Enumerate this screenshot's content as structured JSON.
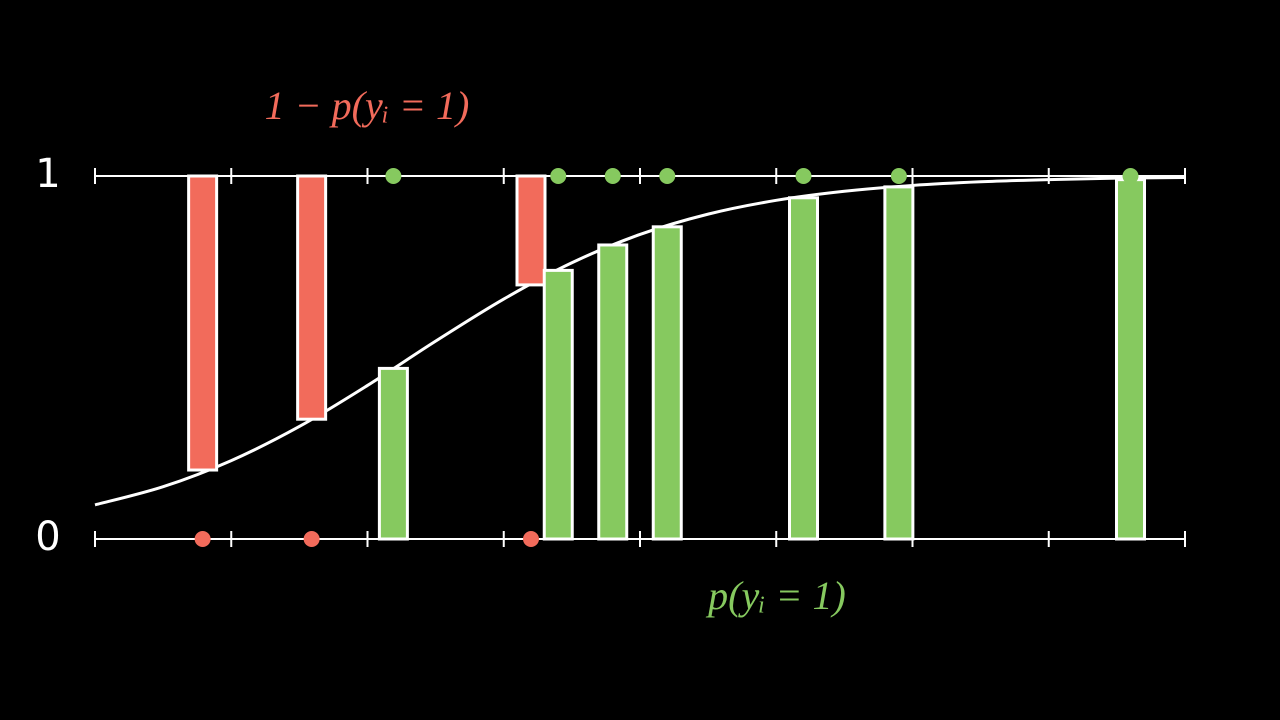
{
  "chart_data": {
    "type": "logistic",
    "xlim": [
      0,
      8
    ],
    "xticks": [
      0,
      1,
      2,
      3,
      4,
      5,
      6,
      7,
      8
    ],
    "ylim": [
      0,
      1
    ],
    "yticks": [
      0,
      1
    ],
    "series": [
      {
        "name": "1 − p(yᵢ = 1)",
        "color": "#f26b5b",
        "x": [
          0.79,
          1.59,
          3.2
        ],
        "values": [
          0,
          0,
          0
        ],
        "p": [
          0.19,
          0.33,
          0.7
        ]
      },
      {
        "name": "p(yᵢ = 1)",
        "color": "#86c95f",
        "x": [
          2.19,
          3.4,
          3.8,
          4.2,
          5.2,
          5.9,
          7.6
        ],
        "values": [
          1,
          1,
          1,
          1,
          1,
          1,
          1
        ],
        "p": [
          0.47,
          0.74,
          0.81,
          0.86,
          0.94,
          0.97,
          0.99
        ]
      }
    ],
    "curve": {
      "x": [
        0,
        0.5,
        1,
        1.5,
        2,
        2.5,
        3,
        3.5,
        4,
        4.5,
        5,
        5.5,
        6,
        6.5,
        7,
        7.5,
        8
      ],
      "values": [
        0.094,
        0.144,
        0.216,
        0.31,
        0.423,
        0.545,
        0.661,
        0.761,
        0.839,
        0.895,
        0.933,
        0.958,
        0.974,
        0.984,
        0.99,
        0.994,
        0.996
      ],
      "color": "#ffffff"
    }
  }
}
